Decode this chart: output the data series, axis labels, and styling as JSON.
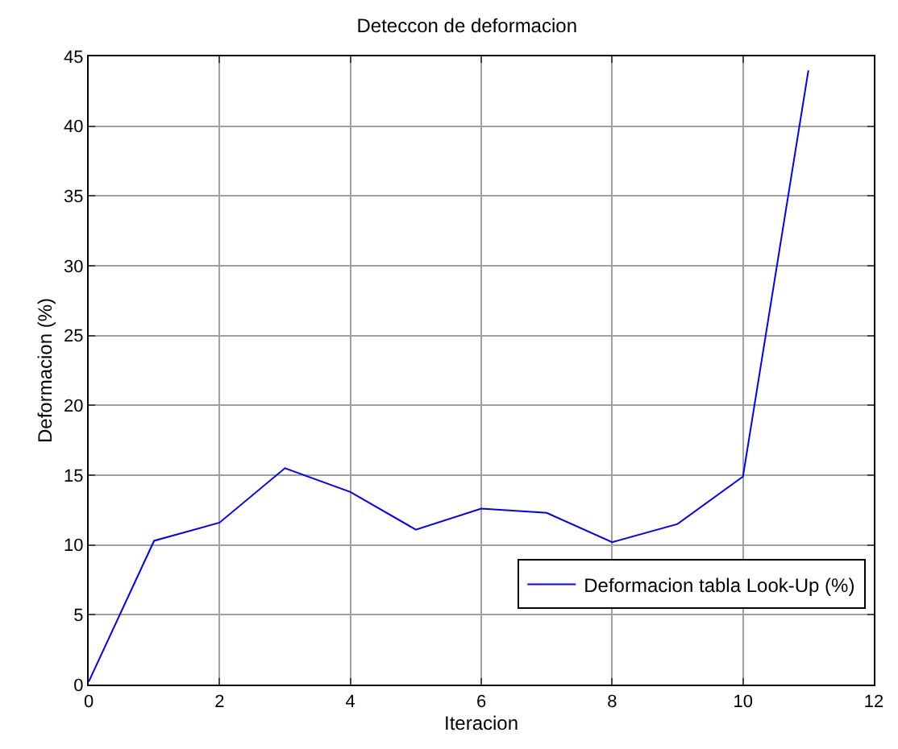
{
  "chart_data": {
    "type": "line",
    "title": "Deteccon de deformacion",
    "xlabel": "Iteracion",
    "ylabel": "Deformacion (%)",
    "x": [
      0,
      1,
      2,
      3,
      4,
      5,
      6,
      7,
      8,
      9,
      10,
      11
    ],
    "series": [
      {
        "name": "Deformacion tabla Look-Up (%)",
        "color": "#0000ff",
        "values": [
          0.2,
          10.3,
          11.6,
          15.5,
          13.8,
          11.1,
          12.6,
          12.3,
          10.2,
          11.5,
          14.9,
          44
        ]
      }
    ],
    "xlim": [
      0,
      12
    ],
    "xticks": [
      0,
      2,
      4,
      6,
      8,
      10,
      12
    ],
    "ylim": [
      0,
      45
    ],
    "yticks": [
      0,
      5,
      10,
      15,
      20,
      25,
      30,
      35,
      40,
      45
    ],
    "grid": true,
    "legend": "bottom right",
    "marker": "none",
    "line_style": "solid"
  }
}
